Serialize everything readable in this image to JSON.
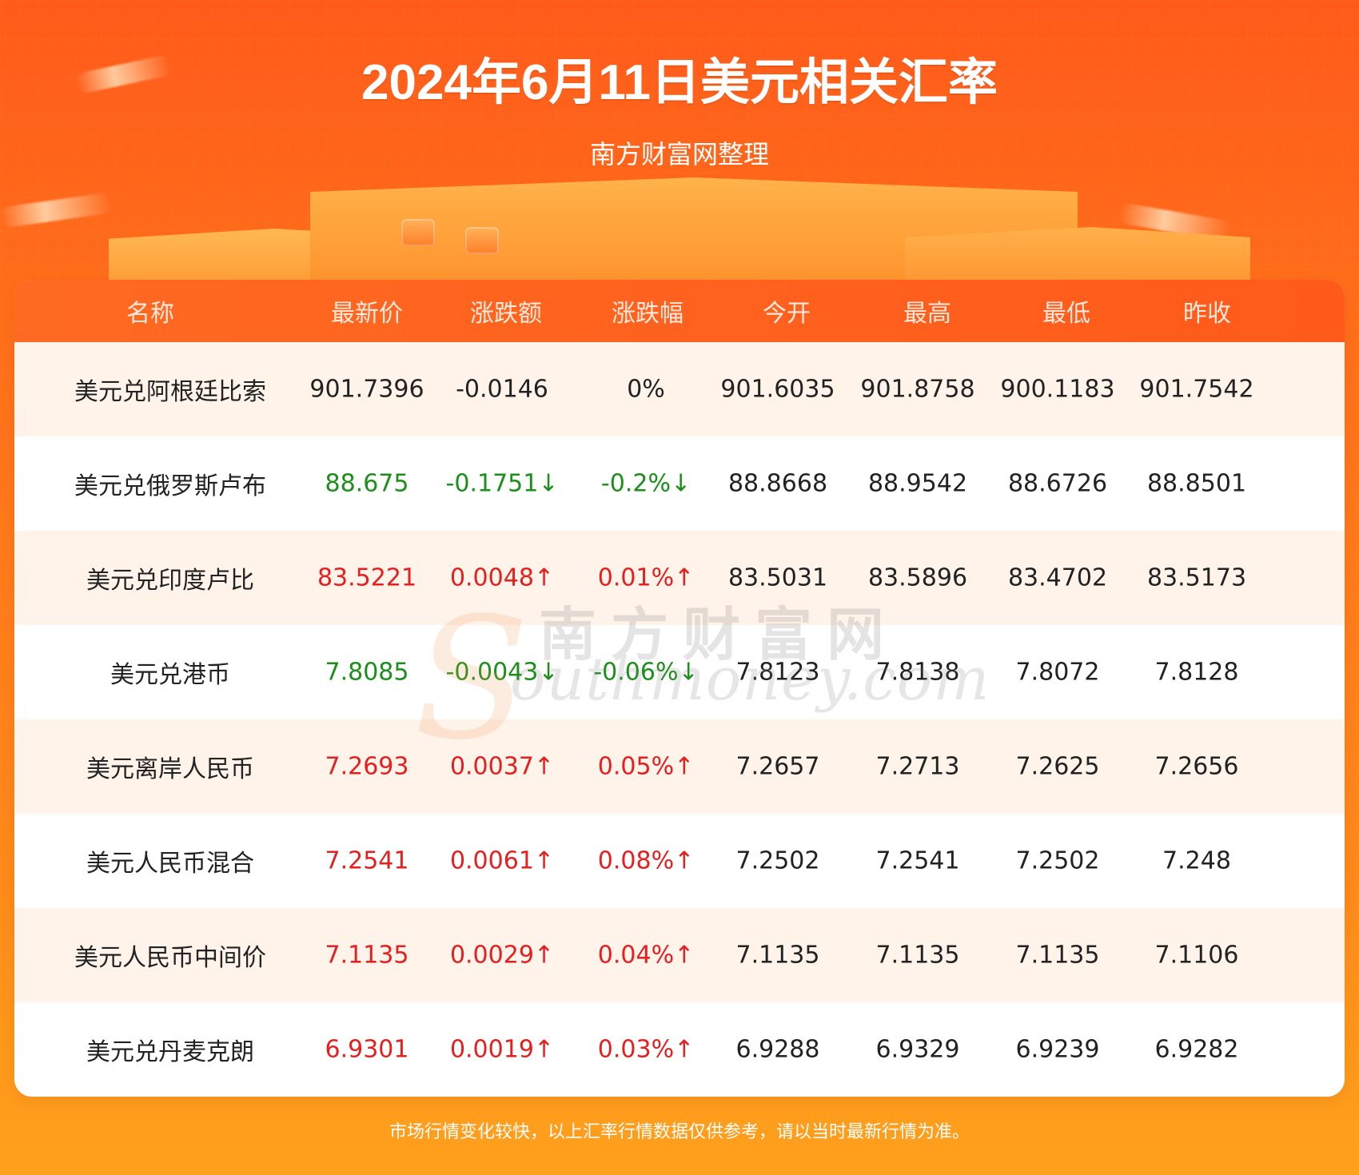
{
  "header": {
    "title": "2024年6月11日美元相关汇率",
    "subtitle": "南方财富网整理"
  },
  "table": {
    "columns": [
      "名称",
      "最新价",
      "涨跌额",
      "涨跌幅",
      "今开",
      "最高",
      "最低",
      "昨收"
    ],
    "rows": [
      {
        "name": "美元兑阿根廷比索",
        "latest": "901.7396",
        "change": "-0.0146",
        "change_pct": "0%",
        "open": "901.6035",
        "high": "901.8758",
        "low": "900.1183",
        "prev_close": "901.7542",
        "trend": "flat"
      },
      {
        "name": "美元兑俄罗斯卢布",
        "latest": "88.675",
        "change": "-0.1751↓",
        "change_pct": "-0.2%↓",
        "open": "88.8668",
        "high": "88.9542",
        "low": "88.6726",
        "prev_close": "88.8501",
        "trend": "down"
      },
      {
        "name": "美元兑印度卢比",
        "latest": "83.5221",
        "change": "0.0048↑",
        "change_pct": "0.01%↑",
        "open": "83.5031",
        "high": "83.5896",
        "low": "83.4702",
        "prev_close": "83.5173",
        "trend": "up"
      },
      {
        "name": "美元兑港币",
        "latest": "7.8085",
        "change": "-0.0043↓",
        "change_pct": "-0.06%↓",
        "open": "7.8123",
        "high": "7.8138",
        "low": "7.8072",
        "prev_close": "7.8128",
        "trend": "down"
      },
      {
        "name": "美元离岸人民币",
        "latest": "7.2693",
        "change": "0.0037↑",
        "change_pct": "0.05%↑",
        "open": "7.2657",
        "high": "7.2713",
        "low": "7.2625",
        "prev_close": "7.2656",
        "trend": "up"
      },
      {
        "name": "美元人民币混合",
        "latest": "7.2541",
        "change": "0.0061↑",
        "change_pct": "0.08%↑",
        "open": "7.2502",
        "high": "7.2541",
        "low": "7.2502",
        "prev_close": "7.248",
        "trend": "up"
      },
      {
        "name": "美元人民币中间价",
        "latest": "7.1135",
        "change": "0.0029↑",
        "change_pct": "0.04%↑",
        "open": "7.1135",
        "high": "7.1135",
        "low": "7.1135",
        "prev_close": "7.1106",
        "trend": "up"
      },
      {
        "name": "美元兑丹麦克朗",
        "latest": "6.9301",
        "change": "0.0019↑",
        "change_pct": "0.03%↑",
        "open": "6.9288",
        "high": "6.9329",
        "low": "6.9239",
        "prev_close": "6.9282",
        "trend": "up"
      }
    ]
  },
  "watermark": {
    "letter": "S",
    "cn": "南方财富网",
    "en": "outhmoney.com"
  },
  "footer": {
    "disclaimer": "市场行情变化较快，以上汇率行情数据仅供参考，请以当时最新行情为准。"
  },
  "colors": {
    "background_top": "#ff5a1a",
    "background_bottom": "#ffa11c",
    "header_row": "#ff5a1a",
    "row_stripe": "#fff3ea",
    "up": "#e61e1e",
    "down": "#1a8f1a"
  }
}
